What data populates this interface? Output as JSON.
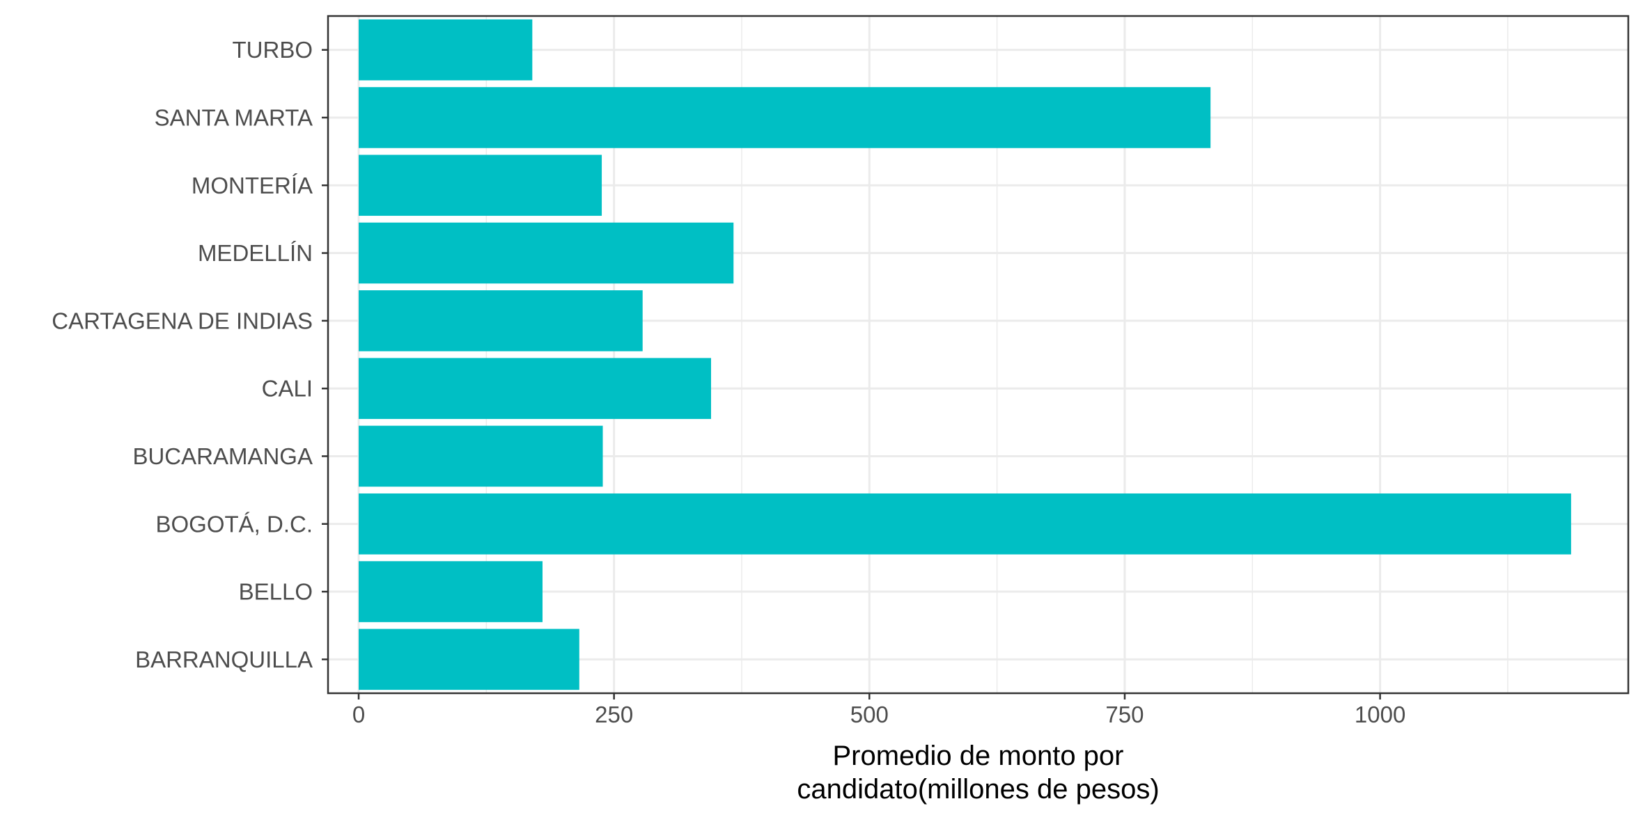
{
  "chart_data": {
    "type": "bar",
    "orientation": "horizontal",
    "categories": [
      "BARRANQUILLA",
      "BELLO",
      "BOGOTÁ, D.C.",
      "BUCARAMANGA",
      "CALI",
      "CARTAGENA DE INDIAS",
      "MEDELLÍN",
      "MONTERÍA",
      "SANTA MARTA",
      "TURBO"
    ],
    "values": [
      216,
      180,
      1187,
      239,
      345,
      278,
      367,
      238,
      834,
      170
    ],
    "title": "",
    "xlabel": "Promedio de monto por\ncandidato(millones de pesos)",
    "ylabel": "",
    "xlim": [
      -30,
      1243
    ],
    "xticks": [
      0,
      250,
      500,
      750,
      1000
    ],
    "xtick_labels": [
      "0",
      "250",
      "500",
      "750",
      "1000"
    ],
    "bar_color": "#00BFC4",
    "grid": true,
    "legend": "none"
  }
}
